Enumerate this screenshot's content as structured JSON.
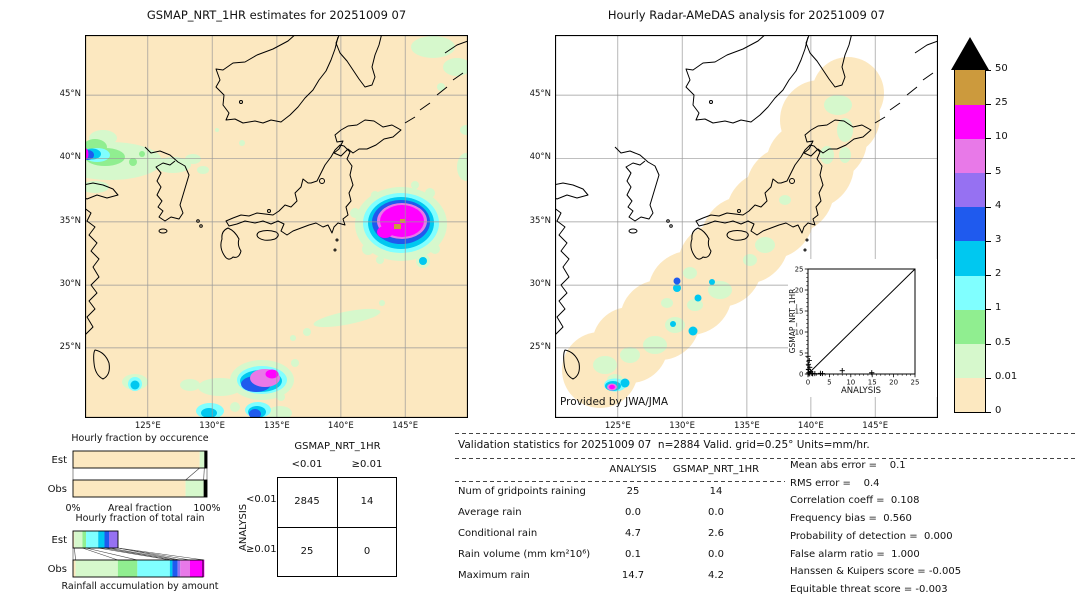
{
  "palette": {
    "tan": "#fce8c0",
    "pale_green": "#d6f8cc",
    "light_green": "#90ee90",
    "light_cyan": "#80ffff",
    "cyan": "#00c8f0",
    "blue": "#1f5aee",
    "purple": "#9671f2",
    "violet": "#e879e8",
    "magenta": "#ff00ff",
    "goldenrod": "#cc9a3d",
    "black": "#000000"
  },
  "maps": {
    "left_title": "GSMAP_NRT_1HR estimates for 20251009 07",
    "right_title": "Hourly Radar-AMeDAS analysis for 20251009 07",
    "credit": "Provided by JWA/JMA",
    "lat_ticks": [
      {
        "label": "45°N",
        "f": 0.157
      },
      {
        "label": "40°N",
        "f": 0.322
      },
      {
        "label": "35°N",
        "f": 0.488
      },
      {
        "label": "30°N",
        "f": 0.653
      },
      {
        "label": "25°N",
        "f": 0.817
      }
    ],
    "lon_ticks": [
      {
        "label": "125°E",
        "f": 0.164
      },
      {
        "label": "130°E",
        "f": 0.332
      },
      {
        "label": "135°E",
        "f": 0.501
      },
      {
        "label": "140°E",
        "f": 0.668
      },
      {
        "label": "145°E",
        "f": 0.836
      }
    ]
  },
  "colorbar": {
    "units": "mm/hr",
    "labels": [
      "0",
      "0.01",
      "0.5",
      "1",
      "2",
      "3",
      "4",
      "5",
      "10",
      "25",
      "50"
    ],
    "colors": [
      "tan",
      "pale_green",
      "light_green",
      "light_cyan",
      "cyan",
      "blue",
      "purple",
      "violet",
      "magenta",
      "goldenrod"
    ]
  },
  "occurrence": {
    "title": "Hourly fraction by occurence",
    "row_labels": [
      "Est",
      "Obs"
    ],
    "axis": [
      {
        "t": "0%",
        "f": 0
      },
      {
        "t": "Areal fraction",
        "f": 0.5
      },
      {
        "t": "100%",
        "f": 1
      }
    ],
    "est": [
      {
        "c": "tan",
        "f": 0.945
      },
      {
        "c": "pale_green",
        "f": 0.035
      },
      {
        "c": "black",
        "f": 0.02
      }
    ],
    "obs": [
      {
        "c": "tan",
        "f": 0.84
      },
      {
        "c": "pale_green",
        "f": 0.135
      },
      {
        "c": "black",
        "f": 0.025
      }
    ]
  },
  "total_rain": {
    "title": "Hourly fraction of total rain",
    "row_labels": [
      "Est",
      "Obs"
    ],
    "xlabel": "Rainfall accumulation by amount",
    "est": [
      {
        "c": "tan",
        "f": 0.03
      },
      {
        "c": "pale_green",
        "f": 0.18
      },
      {
        "c": "light_green",
        "f": 0.08
      },
      {
        "c": "light_cyan",
        "f": 0.27
      },
      {
        "c": "cyan",
        "f": 0.14
      },
      {
        "c": "blue",
        "f": 0.1
      },
      {
        "c": "purple",
        "f": 0.2
      },
      {
        "c": "violet",
        "f": 0
      },
      {
        "c": "magenta",
        "f": 0
      }
    ],
    "obs": [
      {
        "c": "tan",
        "f": 0.02
      },
      {
        "c": "pale_green",
        "f": 0.325
      },
      {
        "c": "light_green",
        "f": 0.15
      },
      {
        "c": "light_cyan",
        "f": 0.25
      },
      {
        "c": "cyan",
        "f": 0.02
      },
      {
        "c": "blue",
        "f": 0.04
      },
      {
        "c": "purple",
        "f": 0.02
      },
      {
        "c": "violet",
        "f": 0.075
      },
      {
        "c": "magenta",
        "f": 0.11
      }
    ]
  },
  "contingency": {
    "col_title": "GSMAP_NRT_1HR",
    "row_title": "ANALYSIS",
    "col_labels": [
      "<0.01",
      "≥0.01"
    ],
    "row_labels": [
      "<0.01",
      "≥0.01"
    ],
    "values": [
      [
        "2845",
        "14"
      ],
      [
        "25",
        "0"
      ]
    ]
  },
  "validation": {
    "header": "Validation statistics for 20251009 07  n=2884 Valid. grid=0.25° Units=mm/hr.",
    "col_headers": [
      "ANALYSIS",
      "GSMAP_NRT_1HR"
    ],
    "rows": [
      {
        "label": "Num of gridpoints raining",
        "analysis": "25",
        "gsmap": "14"
      },
      {
        "label": "Average rain",
        "analysis": "0.0",
        "gsmap": "0.0"
      },
      {
        "label": "Conditional rain",
        "analysis": "4.7",
        "gsmap": "2.6"
      },
      {
        "label": "Rain volume (mm km²10⁶)",
        "analysis": "0.1",
        "gsmap": "0.0"
      },
      {
        "label": "Maximum rain",
        "analysis": "14.7",
        "gsmap": "4.2"
      }
    ],
    "scores": [
      "Mean abs error =    0.1",
      "RMS error =    0.4",
      "Correlation coeff =  0.108",
      "Frequency bias =  0.560",
      "Probability of detection =  0.000",
      "False alarm ratio =  1.000",
      "Hanssen & Kuipers score = -0.005",
      "Equitable threat score = -0.003"
    ]
  },
  "inset": {
    "xlabel": "ANALYSIS",
    "ylabel": "GSMAP_NRT_1HR",
    "ticks": [
      "0",
      "5",
      "10",
      "15",
      "20",
      "25"
    ],
    "points": [
      [
        0,
        4.2
      ],
      [
        0.3,
        3.2
      ],
      [
        0.1,
        2.3
      ],
      [
        0.4,
        1.6
      ],
      [
        0.1,
        1.1
      ],
      [
        0.6,
        0.6
      ],
      [
        0.2,
        0.3
      ],
      [
        0.9,
        0.15
      ],
      [
        1.6,
        0.1
      ],
      [
        2.9,
        0.15
      ],
      [
        3.4,
        0.1
      ],
      [
        8,
        0.8
      ],
      [
        14.9,
        0.3
      ],
      [
        0.05,
        0.02
      ],
      [
        0.4,
        0.05
      ],
      [
        1.1,
        0.05
      ]
    ]
  },
  "chart_data": [
    {
      "type": "heatmap",
      "title": "GSMAP_NRT_1HR estimates for 20251009 07",
      "units": "mm/hr",
      "x_ticks": [
        "125°E",
        "130°E",
        "135°E",
        "140°E",
        "145°E"
      ],
      "y_ticks": [
        "45°N",
        "40°N",
        "35°N",
        "30°N",
        "25°N"
      ],
      "color_scale_bounds": [
        0,
        0.01,
        0.5,
        1,
        2,
        3,
        4,
        5,
        10,
        25,
        50
      ]
    },
    {
      "type": "heatmap",
      "title": "Hourly Radar-AMeDAS analysis for 20251009 07",
      "units": "mm/hr",
      "x_ticks": [
        "125°E",
        "130°E",
        "135°E",
        "140°E",
        "145°E"
      ],
      "y_ticks": [
        "45°N",
        "40°N",
        "35°N",
        "30°N",
        "25°N"
      ],
      "color_scale_bounds": [
        0,
        0.01,
        0.5,
        1,
        2,
        3,
        4,
        5,
        10,
        25,
        50
      ],
      "note": "Provided by JWA/JMA"
    },
    {
      "type": "table",
      "title": "Contingency table (grid points)",
      "row_axis": "ANALYSIS",
      "col_axis": "GSMAP_NRT_1HR",
      "row_categories": [
        "<0.01",
        "≥0.01"
      ],
      "col_categories": [
        "<0.01",
        "≥0.01"
      ],
      "values": [
        [
          2845,
          14
        ],
        [
          25,
          0
        ]
      ]
    },
    {
      "type": "bar",
      "title": "Hourly fraction by occurence",
      "orientation": "horizontal",
      "stacked": true,
      "categories": [
        "Est",
        "Obs"
      ],
      "xlabel": "Areal fraction",
      "xlim": [
        "0%",
        "100%"
      ],
      "series": [
        {
          "name": "Est",
          "values": [
            0.945,
            0.035,
            0.02
          ]
        },
        {
          "name": "Obs",
          "values": [
            0.84,
            0.135,
            0.025
          ]
        }
      ]
    },
    {
      "type": "bar",
      "title": "Hourly fraction of total rain",
      "orientation": "horizontal",
      "stacked": true,
      "categories": [
        "Est",
        "Obs"
      ],
      "xlabel": "Rainfall accumulation by amount",
      "series": [
        {
          "name": "Est",
          "values": [
            0.03,
            0.18,
            0.08,
            0.27,
            0.14,
            0.1,
            0.2
          ]
        },
        {
          "name": "Obs",
          "values": [
            0.02,
            0.325,
            0.15,
            0.25,
            0.02,
            0.04,
            0.02,
            0.075,
            0.11
          ]
        }
      ],
      "bar_length_ratio_est_to_obs": 0.35
    },
    {
      "type": "table",
      "title": "Validation statistics for 20251009 07",
      "n": 2884,
      "grid": "0.25°",
      "units": "mm/hr",
      "columns": [
        "ANALYSIS",
        "GSMAP_NRT_1HR"
      ],
      "rows": [
        [
          "Num of gridpoints raining",
          25,
          14
        ],
        [
          "Average rain",
          0.0,
          0.0
        ],
        [
          "Conditional rain",
          4.7,
          2.6
        ],
        [
          "Rain volume (mm km²10⁶)",
          0.1,
          0.0
        ],
        [
          "Maximum rain",
          14.7,
          4.2
        ]
      ],
      "scores": {
        "Mean abs error": 0.1,
        "RMS error": 0.4,
        "Correlation coeff": 0.108,
        "Frequency bias": 0.56,
        "Probability of detection": 0.0,
        "False alarm ratio": 1.0,
        "Hanssen & Kuipers score": -0.005,
        "Equitable threat score": -0.003
      }
    },
    {
      "type": "scatter",
      "title": "GSMAP_NRT_1HR vs ANALYSIS",
      "xlabel": "ANALYSIS",
      "ylabel": "GSMAP_NRT_1HR",
      "xlim": [
        0,
        25
      ],
      "ylim": [
        0,
        25
      ],
      "diagonal_line": true,
      "points": [
        [
          0,
          4.2
        ],
        [
          0.3,
          3.2
        ],
        [
          0.1,
          2.3
        ],
        [
          0.4,
          1.6
        ],
        [
          0.1,
          1.1
        ],
        [
          0.6,
          0.6
        ],
        [
          0.2,
          0.3
        ],
        [
          0.9,
          0.15
        ],
        [
          1.6,
          0.1
        ],
        [
          2.9,
          0.15
        ],
        [
          3.4,
          0.1
        ],
        [
          8,
          0.8
        ],
        [
          14.9,
          0.3
        ],
        [
          0.05,
          0.02
        ],
        [
          0.4,
          0.05
        ],
        [
          1.1,
          0.05
        ]
      ]
    }
  ]
}
